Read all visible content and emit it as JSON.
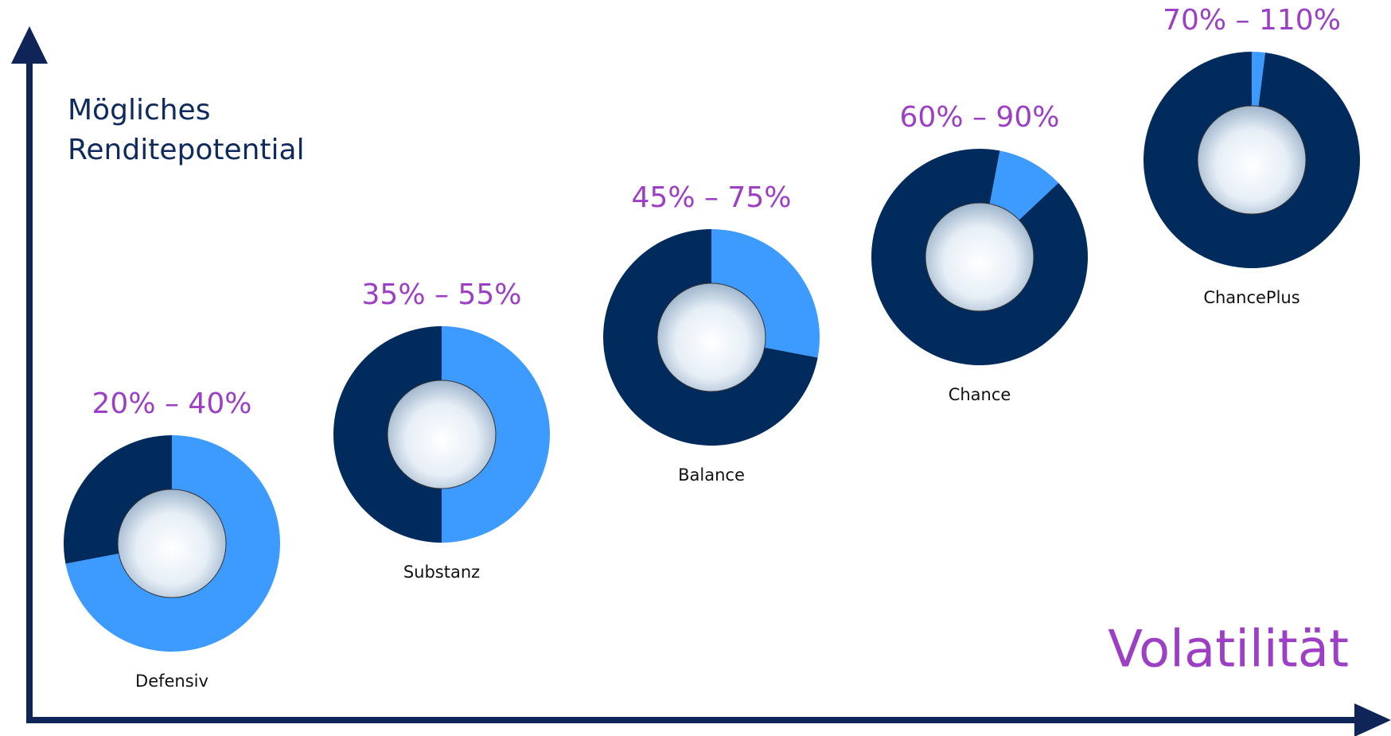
{
  "chart_data": {
    "type": "donut",
    "y_label": [
      "Mögliches",
      "Renditepotential"
    ],
    "x_label": "Volatilität",
    "donuts": [
      {
        "category": "Defensiv",
        "range_label": "20% – 40%",
        "slices": [
          {
            "color": "#3d9bff",
            "value": 72
          },
          {
            "color": "#002b5c",
            "value": 28
          }
        ]
      },
      {
        "category": "Substanz",
        "range_label": "35% – 55%",
        "slices": [
          {
            "color": "#3d9bff",
            "value": 50
          },
          {
            "color": "#002b5c",
            "value": 50
          }
        ]
      },
      {
        "category": "Balance",
        "range_label": "45% – 75%",
        "slices": [
          {
            "color": "#3d9bff",
            "value": 28
          },
          {
            "color": "#002b5c",
            "value": 72
          }
        ]
      },
      {
        "category": "Chance",
        "range_label": "60% – 90%",
        "slices": [
          {
            "color": "#002b5c",
            "value": 3
          },
          {
            "color": "#3d9bff",
            "value": 10
          },
          {
            "color": "#002b5c",
            "value": 87
          }
        ]
      },
      {
        "category": "ChancePlus",
        "range_label": "70% – 110%",
        "slices": [
          {
            "color": "#3d9bff",
            "value": 2
          },
          {
            "color": "#002b5c",
            "value": 98
          }
        ]
      }
    ]
  }
}
